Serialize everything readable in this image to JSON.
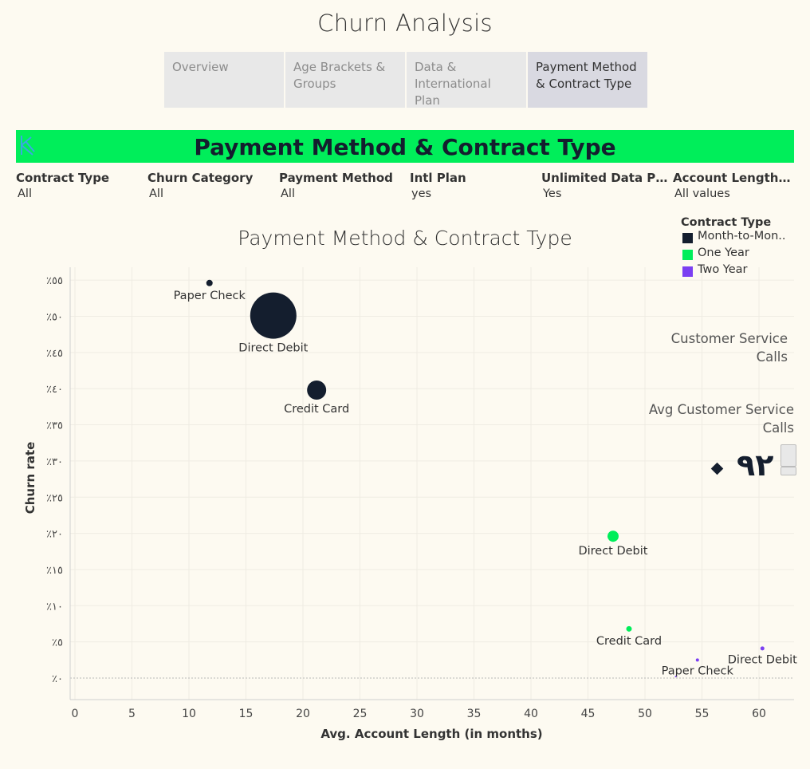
{
  "page_title": "Churn Analysis",
  "tabs": [
    {
      "label": "Overview",
      "active": false
    },
    {
      "label": "Age Brackets & Groups",
      "active": false
    },
    {
      "label": "Data & International Plan",
      "active": false
    },
    {
      "label": "Payment Method & Contract Type",
      "active": true
    }
  ],
  "banner": {
    "title": "Payment Method & Contract Type",
    "color": "#00ee5a"
  },
  "filters": [
    {
      "label": "Contract Type",
      "value": "All"
    },
    {
      "label": "Churn Category",
      "value": "All"
    },
    {
      "label": "Payment Method",
      "value": "All"
    },
    {
      "label": "Intl Plan",
      "value": "yes"
    },
    {
      "label": "Unlimited Data Plan",
      "value": "Yes"
    },
    {
      "label": "Account Length (in ..",
      "value": "All values"
    }
  ],
  "side_panel": {
    "customer_service_calls": "Customer Service Calls",
    "avg_customer_service_calls": "Avg Customer Service Calls",
    "kpi_value": "٩٢"
  },
  "chart_data": {
    "type": "scatter",
    "title": "Payment Method & Contract Type",
    "xlabel": "Avg. Account Length (in months)",
    "ylabel": "Churn rate",
    "xlim": [
      0,
      63
    ],
    "ylim": [
      0,
      56
    ],
    "x_ticks": [
      "0",
      "5",
      "10",
      "15",
      "20",
      "25",
      "30",
      "35",
      "40",
      "45",
      "50",
      "55",
      "60"
    ],
    "y_ticks": [
      "٪٠",
      "٪٥",
      "٪١٠",
      "٪١٥",
      "٪٢٠",
      "٪٢٥",
      "٪٣٠",
      "٪٣٥",
      "٪٤٠",
      "٪٤٥",
      "٪٥٠",
      "٪٥٥"
    ],
    "legend_title": "Contract Type",
    "legend_position": "top-right",
    "grid": true,
    "series": [
      {
        "name": "Month-to-Mon..",
        "color": "#141e2e",
        "points": [
          {
            "label": "Paper Check",
            "x": 11.8,
            "y": 54.6,
            "size": 8
          },
          {
            "label": "Direct Debit",
            "x": 17.4,
            "y": 50.1,
            "size": 58
          },
          {
            "label": "Credit Card",
            "x": 21.2,
            "y": 39.8,
            "size": 24
          }
        ]
      },
      {
        "name": "One Year",
        "color": "#00ee5a",
        "points": [
          {
            "label": "Direct Debit",
            "x": 47.2,
            "y": 19.6,
            "size": 14
          },
          {
            "label": "Credit Card",
            "x": 48.6,
            "y": 6.8,
            "size": 7
          }
        ]
      },
      {
        "name": "Two Year",
        "color": "#7b3ff2",
        "points": [
          {
            "label": "Direct Debit",
            "x": 60.3,
            "y": 4.1,
            "size": 5
          },
          {
            "label": "Paper Check",
            "x": 54.6,
            "y": 2.5,
            "size": 4
          },
          {
            "label": "",
            "x": 52.7,
            "y": 0.2,
            "size": 2
          }
        ]
      }
    ]
  }
}
